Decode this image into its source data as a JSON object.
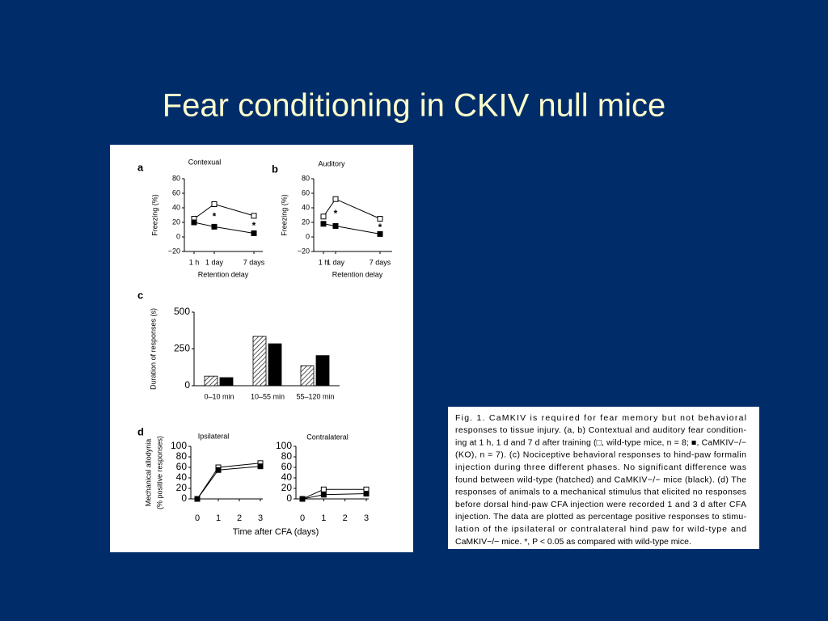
{
  "title": "Fear conditioning in CKIV null mice",
  "chart_data": [
    {
      "type": "line",
      "panel": "a",
      "title": "Contexual",
      "categories": [
        "1 h",
        "1 day",
        "7 days"
      ],
      "series": [
        {
          "color": "#000000",
          "marker_fill": "#ffffff",
          "values": [
            25,
            45,
            29
          ]
        },
        {
          "color": "#000000",
          "marker_fill": "#000000",
          "values": [
            20,
            14,
            5
          ]
        }
      ],
      "significance": [
        null,
        "*",
        "*"
      ],
      "ylim": [
        -20,
        80
      ],
      "yticks": [
        {
          "value": -20,
          "label": "−20"
        },
        0,
        20,
        40,
        60,
        80
      ],
      "y_label": "Freezing (%)",
      "x_label": "Retention delay"
    },
    {
      "type": "line",
      "panel": "b",
      "title": "Auditory",
      "categories": [
        "1 h",
        "1 day",
        "7 days"
      ],
      "series": [
        {
          "color": "#000000",
          "marker_fill": "#ffffff",
          "values": [
            28,
            52,
            25
          ]
        },
        {
          "color": "#000000",
          "marker_fill": "#000000",
          "values": [
            18,
            15,
            4
          ]
        }
      ],
      "significance": [
        null,
        "*",
        "*"
      ],
      "ylim": [
        -20,
        80
      ],
      "yticks": [
        {
          "value": -20,
          "label": "−20"
        },
        0,
        20,
        40,
        60,
        80
      ],
      "y_label": "Freezing (%)",
      "x_label": "Retention delay"
    },
    {
      "type": "bar",
      "panel": "c",
      "categories": [
        "0–10 min",
        "10–55 min",
        "55–120 min"
      ],
      "series": [
        {
          "color": "#000000",
          "pattern": "hatched",
          "values": [
            65,
            335,
            135
          ]
        },
        {
          "color": "#000000",
          "pattern": "solid",
          "values": [
            55,
            285,
            205
          ]
        }
      ],
      "ylim": [
        0,
        500
      ],
      "yticks": [
        0,
        250,
        500
      ],
      "y_label": "Duration of responses (s)"
    },
    {
      "type": "line",
      "panel": "d",
      "title": "Ipsilateral",
      "x": [
        0,
        1,
        3
      ],
      "series": [
        {
          "color": "#000000",
          "marker_fill": "#ffffff",
          "values": [
            0,
            60,
            68
          ]
        },
        {
          "color": "#000000",
          "marker_fill": "#000000",
          "values": [
            0,
            55,
            62
          ]
        }
      ],
      "xlim": [
        0,
        3
      ],
      "xticks": [
        0,
        1,
        2,
        3
      ],
      "ylim": [
        0,
        100
      ],
      "yticks": [
        0,
        20,
        40,
        60,
        80,
        100
      ],
      "y_label": [
        "Mechanical allodynia",
        "(% positive responses)"
      ],
      "x_label": "Time after CFA (days)"
    },
    {
      "type": "line",
      "title": "Contralateral",
      "x": [
        0,
        1,
        3
      ],
      "series": [
        {
          "color": "#000000",
          "marker_fill": "#ffffff",
          "values": [
            0,
            18,
            18
          ]
        },
        {
          "color": "#000000",
          "marker_fill": "#000000",
          "values": [
            0,
            8,
            10
          ]
        }
      ],
      "xlim": [
        0,
        3
      ],
      "xticks": [
        0,
        1,
        2,
        3
      ],
      "ylim": [
        0,
        100
      ],
      "yticks": [
        0,
        20,
        40,
        60,
        80,
        100
      ]
    }
  ],
  "caption": [
    "Fig. 1. CaMKIV is required for fear memory but not behavioral",
    "responses to tissue injury. (a, b) Contextual and auditory fear condition-",
    "ing at 1 h, 1 d and 7 d after training (□, wild-type mice, n = 8; ■, CaMKIV−/−",
    "(KO), n = 7). (c) Nociceptive behavioral responses to hind-paw formalin",
    "injection during three different phases. No significant difference was",
    "found between wild-type (hatched) and CaMKIV−/− mice (black). (d) The",
    "responses of animals to a mechanical stimulus that elicited no responses",
    "before dorsal hind-paw CFA injection were recorded 1 and 3 d after CFA",
    "injection. The data are plotted as percentage positive responses to stimu-",
    "lation of the ipsilateral or contralateral hind paw for wild-type and",
    "CaMKIV−/− mice. *, P < 0.05 as compared with wild-type mice."
  ]
}
